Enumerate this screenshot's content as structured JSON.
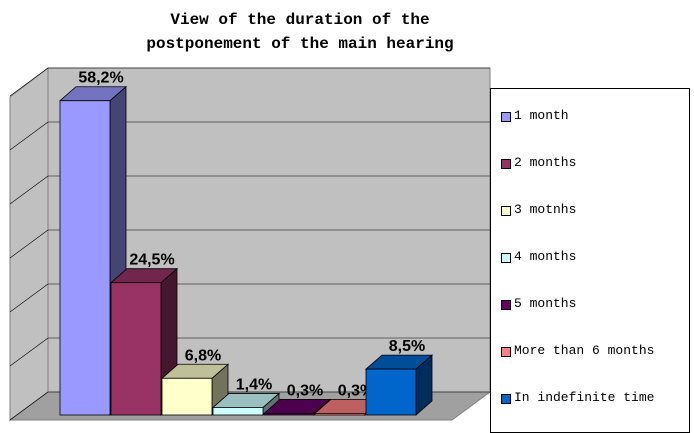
{
  "chart_data": {
    "type": "bar3d",
    "title": "View of the duration of the postponement of the main hearing",
    "categories": [
      "1 month",
      "2 months",
      "3 motnhs",
      "4 months",
      "5 months",
      "More than 6 months",
      "In indefinite time"
    ],
    "values": [
      58.2,
      24.5,
      6.8,
      1.4,
      0.3,
      0.3,
      8.5
    ],
    "value_labels": [
      "58,2%",
      "24,5%",
      "6,8%",
      "1,4%",
      "0,3%",
      "0,3%",
      "8,5%"
    ],
    "colors": [
      "#9999ff",
      "#993366",
      "#ffffcc",
      "#ccffff",
      "#660066",
      "#ff8080",
      "#0066cc"
    ],
    "ylim": [
      0,
      60
    ],
    "yticks": [
      0,
      10,
      20,
      30,
      40,
      50,
      60
    ],
    "grid": true,
    "legend": "right"
  }
}
